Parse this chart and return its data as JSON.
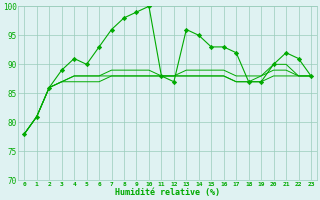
{
  "xlabel": "Humidité relative (%)",
  "xlim": [
    -0.5,
    23.5
  ],
  "ylim": [
    70,
    100
  ],
  "yticks": [
    70,
    75,
    80,
    85,
    90,
    95,
    100
  ],
  "xticks": [
    0,
    1,
    2,
    3,
    4,
    5,
    6,
    7,
    8,
    9,
    10,
    11,
    12,
    13,
    14,
    15,
    16,
    17,
    18,
    19,
    20,
    21,
    22,
    23
  ],
  "line_color": "#00aa00",
  "bg_color": "#dff2f2",
  "grid_color": "#99ccbb",
  "marker_color": "#00aa00",
  "series": [
    [
      78,
      81,
      86,
      89,
      91,
      90,
      93,
      96,
      98,
      99,
      100,
      88,
      87,
      96,
      95,
      93,
      93,
      92,
      87,
      87,
      90,
      92,
      91,
      88
    ],
    [
      78,
      81,
      86,
      87,
      88,
      88,
      88,
      89,
      89,
      89,
      89,
      88,
      88,
      89,
      89,
      89,
      89,
      88,
      88,
      88,
      89,
      89,
      88,
      88
    ],
    [
      78,
      81,
      86,
      87,
      88,
      88,
      88,
      88,
      88,
      88,
      88,
      88,
      88,
      88,
      88,
      88,
      88,
      87,
      87,
      88,
      90,
      90,
      88,
      88
    ],
    [
      78,
      81,
      86,
      87,
      87,
      87,
      87,
      88,
      88,
      88,
      88,
      88,
      88,
      88,
      88,
      88,
      88,
      87,
      87,
      87,
      88,
      88,
      88,
      88
    ]
  ],
  "xlabel_fontsize": 6,
  "ytick_fontsize": 5.5,
  "xtick_fontsize": 4.5
}
